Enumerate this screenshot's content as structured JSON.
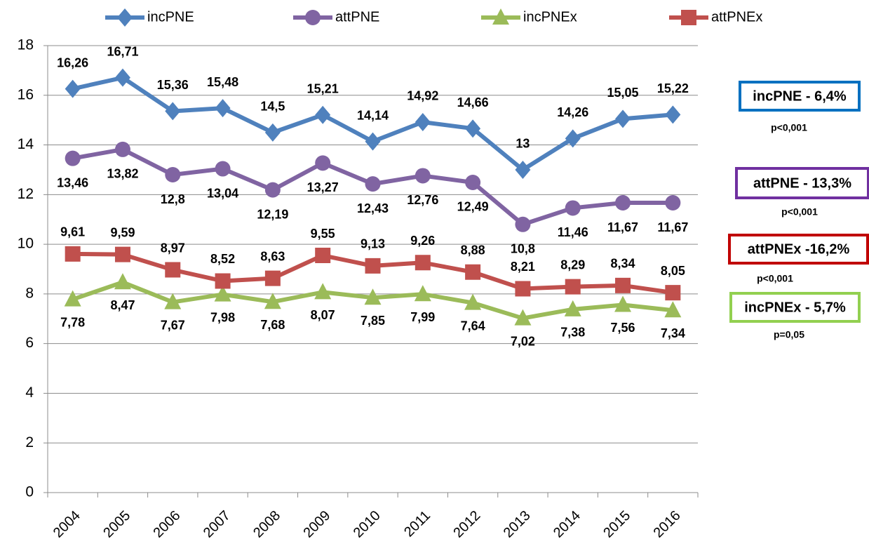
{
  "chart_data": {
    "type": "line",
    "categories": [
      "2004",
      "2005",
      "2006",
      "2007",
      "2008",
      "2009",
      "2010",
      "2011",
      "2012",
      "2013",
      "2014",
      "2015",
      "2016"
    ],
    "series": [
      {
        "name": "incPNE",
        "color": "#4f81bd",
        "values": [
          16.26,
          16.71,
          15.36,
          15.48,
          14.5,
          15.21,
          14.14,
          14.92,
          14.66,
          13,
          14.26,
          15.05,
          15.22
        ],
        "value_labels": [
          "16,26",
          "16,71",
          "15,36",
          "15,48",
          "14,5",
          "15,21",
          "14,14",
          "14,92",
          "14,66",
          "13",
          "14,26",
          "15,05",
          "15,22"
        ]
      },
      {
        "name": "attPNE",
        "color": "#8064a2",
        "values": [
          13.46,
          13.82,
          12.8,
          13.04,
          12.19,
          13.27,
          12.43,
          12.76,
          12.49,
          10.8,
          11.46,
          11.67,
          11.67
        ],
        "value_labels": [
          "13,46",
          "13,82",
          "12,8",
          "13,04",
          "12,19",
          "13,27",
          "12,43",
          "12,76",
          "12,49",
          "10,8",
          "11,46",
          "11,67",
          "11,67"
        ]
      },
      {
        "name": "incPNEx",
        "color": "#9bbb59",
        "values": [
          7.78,
          8.47,
          7.67,
          7.98,
          7.68,
          8.07,
          7.85,
          7.99,
          7.64,
          7.02,
          7.38,
          7.56,
          7.34
        ],
        "value_labels": [
          "7,78",
          "8,47",
          "7,67",
          "7,98",
          "7,68",
          "8,07",
          "7,85",
          "7,99",
          "7,64",
          "7,02",
          "7,38",
          "7,56",
          "7,34"
        ]
      },
      {
        "name": "attPNEx",
        "color": "#c0504d",
        "values": [
          9.61,
          9.59,
          8.97,
          8.52,
          8.63,
          9.55,
          9.13,
          9.26,
          8.88,
          8.21,
          8.29,
          8.34,
          8.05
        ],
        "value_labels": [
          "9,61",
          "9,59",
          "8,97",
          "8,52",
          "8,63",
          "9,55",
          "9,13",
          "9,26",
          "8,88",
          "8,21",
          "8,29",
          "8,34",
          "8,05"
        ]
      }
    ],
    "ylim": [
      0,
      18
    ],
    "yticks": [
      0,
      2,
      4,
      6,
      8,
      10,
      12,
      14,
      16,
      18
    ],
    "grid": true,
    "legend": "top",
    "annotations": [
      {
        "text": "incPNE - 6,4%",
        "note": "p<0,001",
        "color": "#0070c0"
      },
      {
        "text": "attPNE - 13,3%",
        "note": "p<0,001",
        "color": "#7030a0"
      },
      {
        "text": "attPNEx -16,2%",
        "note": "p<0,001",
        "color": "#c00000"
      },
      {
        "text": "incPNEx - 5,7%",
        "note": "p=0,05",
        "color": "#92d050"
      }
    ]
  }
}
